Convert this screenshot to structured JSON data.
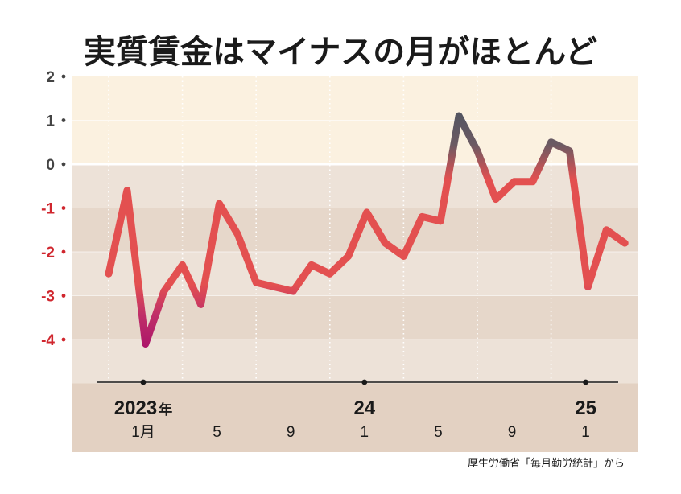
{
  "chart_data": {
    "type": "line",
    "title": "実質賃金はマイナスの月がほとんど",
    "source": "厚生労働省「毎月勤労統計」から",
    "ylim": [
      -5,
      2
    ],
    "y_ticks": [
      "2",
      "1",
      "0",
      "-1",
      "-2",
      "-3",
      "-4"
    ],
    "x_year_labels": [
      {
        "index": 0,
        "year": "2023",
        "suffix": "年"
      },
      {
        "index": 12,
        "year": "24",
        "suffix": ""
      },
      {
        "index": 24,
        "year": "25",
        "suffix": ""
      }
    ],
    "x_month_labels": [
      {
        "index": 0,
        "label": "1月"
      },
      {
        "index": 4,
        "label": "5"
      },
      {
        "index": 8,
        "label": "9"
      },
      {
        "index": 12,
        "label": "1"
      },
      {
        "index": 16,
        "label": "5"
      },
      {
        "index": 20,
        "label": "9"
      },
      {
        "index": 24,
        "label": "1"
      }
    ],
    "series": [
      {
        "values": [
          -2.5,
          -0.6,
          -4.1,
          -2.9,
          -2.3,
          -3.2,
          -0.9,
          -1.6,
          -2.7,
          -2.8,
          -2.9,
          -2.3,
          -2.5,
          -2.1,
          -1.1,
          -1.8,
          -2.1,
          -1.2,
          -1.3,
          1.1,
          0.3,
          -0.8,
          -0.4,
          -0.4,
          0.5,
          0.3,
          -2.8,
          -1.5,
          -1.8
        ]
      }
    ],
    "colors": {
      "positive_band": "#fbf1e0",
      "negative_band_a": "#ede2d8",
      "negative_band_b": "#e6d7ca",
      "axis_area": "#e3d1c2",
      "line_main": "#e35050",
      "line_high": "#4c5360",
      "line_low": "#a8106a",
      "negative_tick": "#d0262e",
      "positive_tick": "#444444"
    }
  }
}
